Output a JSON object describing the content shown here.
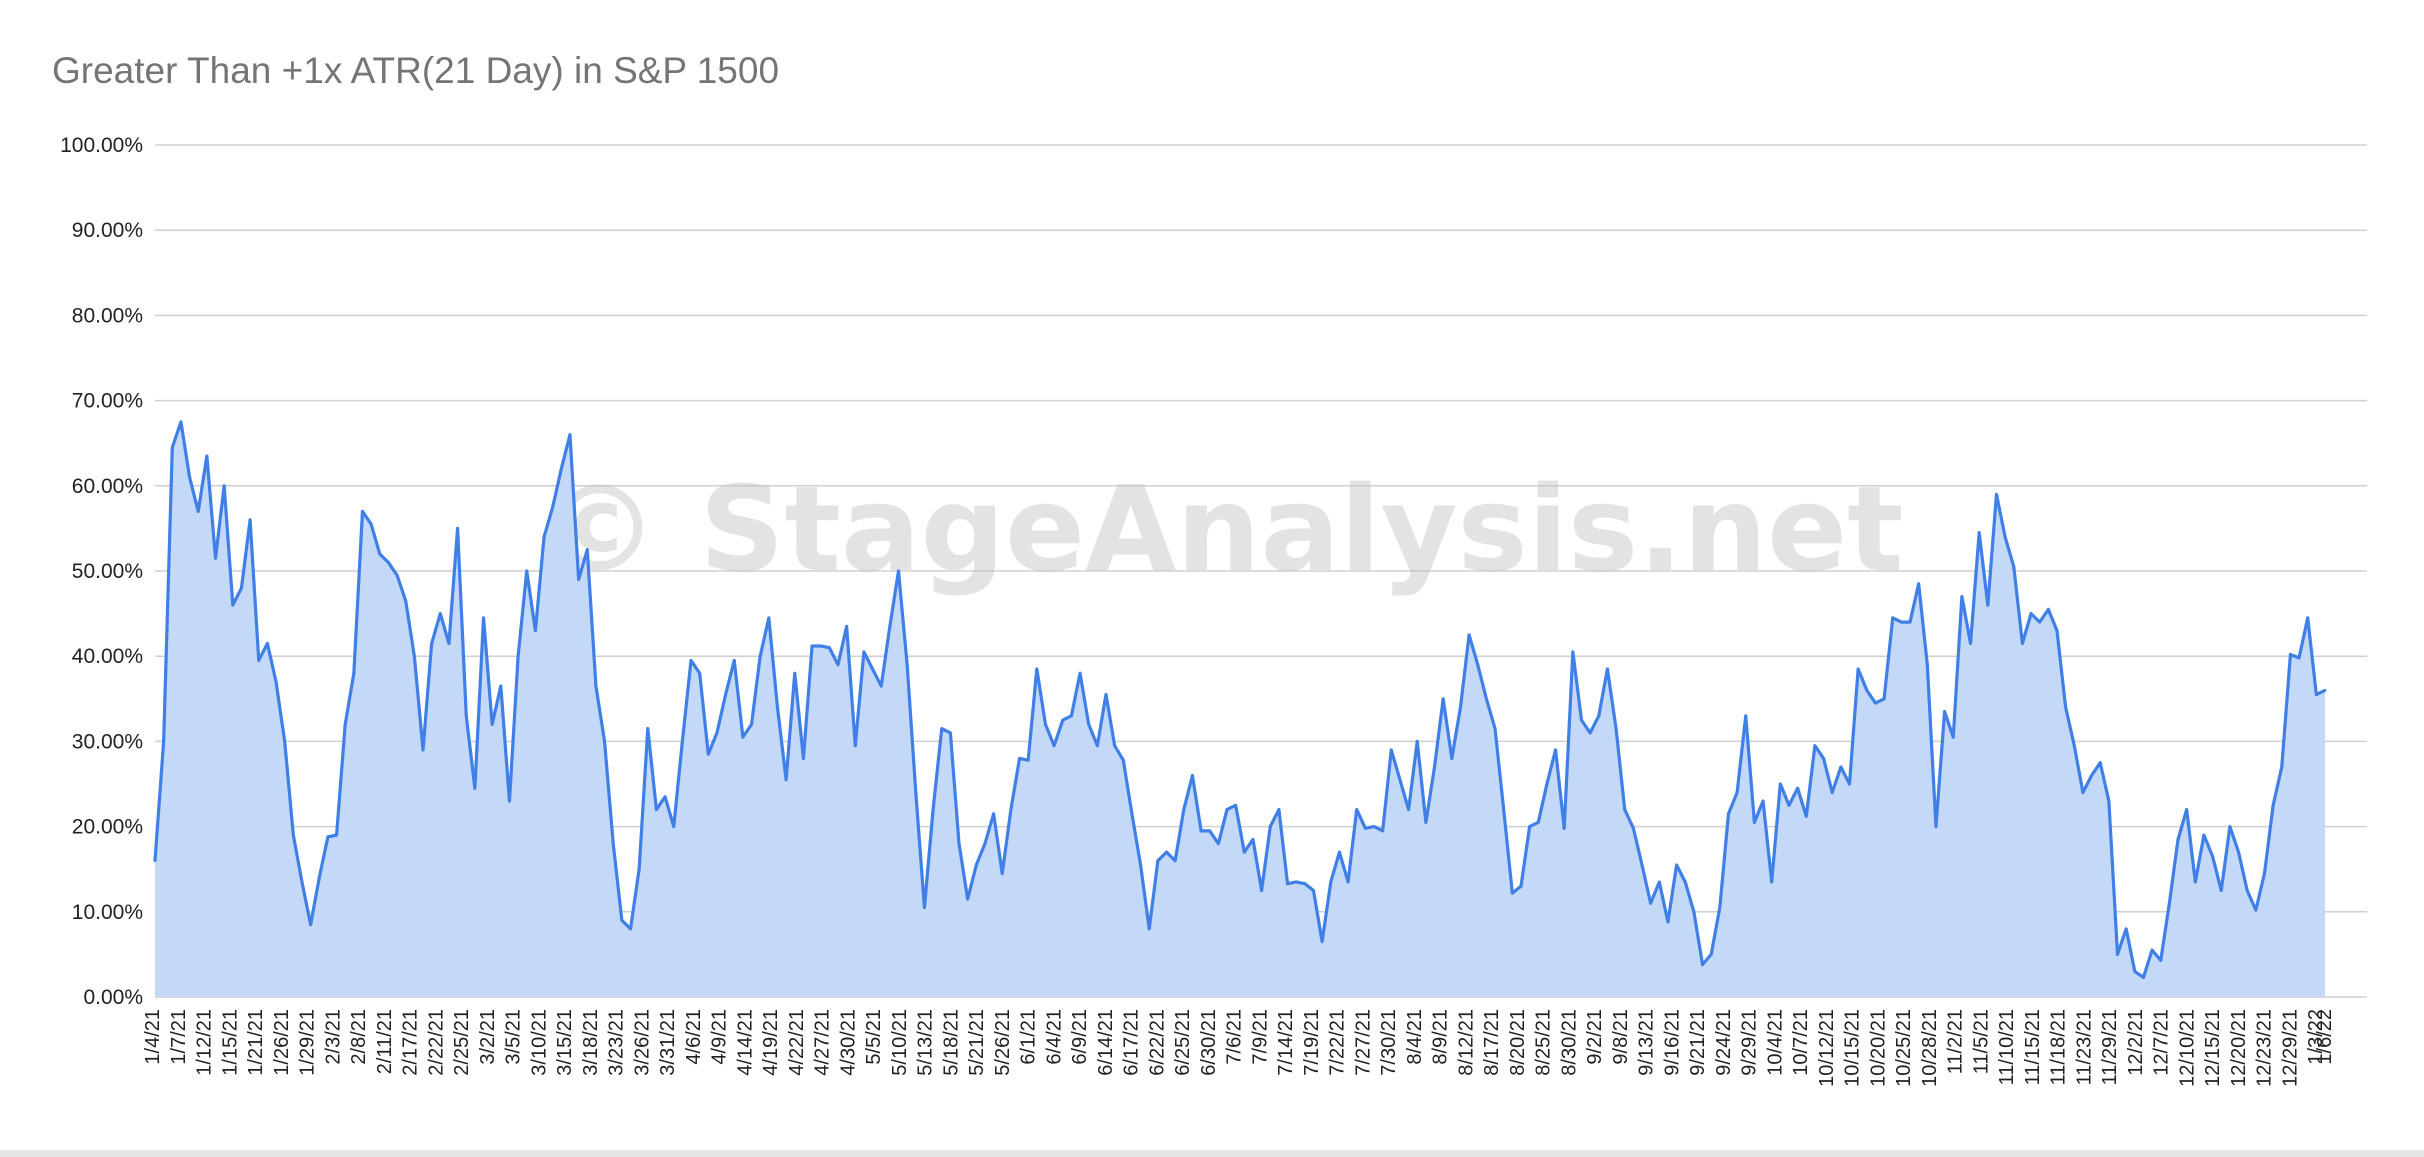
{
  "chart_data": {
    "type": "area",
    "title": "Greater Than +1x ATR(21 Day) in S&P 1500",
    "watermark": "© StageAnalysis.net",
    "xlabel": "",
    "ylabel": "",
    "ylim": [
      0,
      100
    ],
    "y_ticks": [
      "0.00%",
      "10.00%",
      "20.00%",
      "30.00%",
      "40.00%",
      "50.00%",
      "60.00%",
      "70.00%",
      "80.00%",
      "90.00%",
      "100.00%"
    ],
    "x_ticks": [
      "1/4/21",
      "1/7/21",
      "1/12/21",
      "1/15/21",
      "1/21/21",
      "1/26/21",
      "1/29/21",
      "2/3/21",
      "2/8/21",
      "2/11/21",
      "2/17/21",
      "2/22/21",
      "2/25/21",
      "3/2/21",
      "3/5/21",
      "3/10/21",
      "3/15/21",
      "3/18/21",
      "3/23/21",
      "3/26/21",
      "3/31/21",
      "4/6/21",
      "4/9/21",
      "4/14/21",
      "4/19/21",
      "4/22/21",
      "4/27/21",
      "4/30/21",
      "5/5/21",
      "5/10/21",
      "5/13/21",
      "5/18/21",
      "5/21/21",
      "5/26/21",
      "6/1/21",
      "6/4/21",
      "6/9/21",
      "6/14/21",
      "6/17/21",
      "6/22/21",
      "6/25/21",
      "6/30/21",
      "7/6/21",
      "7/9/21",
      "7/14/21",
      "7/19/21",
      "7/22/21",
      "7/27/21",
      "7/30/21",
      "8/4/21",
      "8/9/21",
      "8/12/21",
      "8/17/21",
      "8/20/21",
      "8/25/21",
      "8/30/21",
      "9/2/21",
      "9/8/21",
      "9/13/21",
      "9/16/21",
      "9/21/21",
      "9/24/21",
      "9/29/21",
      "10/4/21",
      "10/7/21",
      "10/12/21",
      "10/15/21",
      "10/20/21",
      "10/25/21",
      "10/28/21",
      "11/2/21",
      "11/5/21",
      "11/10/21",
      "11/15/21",
      "11/18/21",
      "11/23/21",
      "11/29/21",
      "12/2/21",
      "12/7/21",
      "12/10/21",
      "12/15/21",
      "12/20/21",
      "12/23/21",
      "12/29/21",
      "1/3/22",
      "1/6/22"
    ],
    "series": [
      {
        "color": "#3f7fe6",
        "fill": "#c4d8f8",
        "values": [
          16,
          30,
          64.5,
          67.5,
          61,
          57,
          63.5,
          51.5,
          60,
          46,
          48,
          56,
          39.5,
          41.5,
          37,
          30,
          19,
          13.5,
          8.5,
          14,
          18.8,
          19,
          32,
          38,
          57,
          55.5,
          52,
          51,
          49.5,
          46.5,
          40,
          29,
          41.5,
          45,
          41.5,
          55,
          33,
          24.5,
          44.5,
          32,
          36.5,
          23,
          40,
          50,
          43,
          54,
          57.5,
          62,
          66,
          49,
          52.5,
          36.5,
          30,
          18,
          9,
          8,
          15,
          31.5,
          22,
          23.5,
          20,
          30,
          39.5,
          38,
          28.5,
          31,
          35.5,
          39.5,
          30.5,
          32,
          40,
          44.5,
          34,
          25.5,
          38,
          28,
          41.2,
          41.2,
          41,
          39,
          43.5,
          29.5,
          40.5,
          38.5,
          36.5,
          43.5,
          50,
          39,
          24,
          10.5,
          22,
          31.5,
          31,
          18,
          11.5,
          15.5,
          18,
          21.5,
          14.5,
          22,
          28,
          27.8,
          38.5,
          32,
          29.5,
          32.5,
          33,
          38,
          32,
          29.5,
          35.5,
          29.5,
          27.8,
          21.5,
          15.5,
          8,
          16,
          17,
          16,
          22,
          26,
          19.5,
          19.5,
          18,
          22,
          22.5,
          17,
          18.5,
          12.5,
          20,
          22,
          13.3,
          13.5,
          13.3,
          12.5,
          6.5,
          13.5,
          17,
          13.5,
          22,
          19.8,
          20,
          19.5,
          29,
          25.5,
          22,
          30,
          20.5,
          27,
          35,
          28,
          34,
          42.5,
          39,
          35,
          31.5,
          22,
          12.2,
          13,
          20,
          20.5,
          25,
          29,
          19.8,
          40.5,
          32.5,
          31,
          33,
          38.5,
          31.5,
          22,
          19.8,
          15.5,
          11,
          13.5,
          8.8,
          15.5,
          13.5,
          10,
          3.8,
          5,
          10.5,
          21.5,
          24,
          33,
          20.5,
          23,
          13.5,
          25,
          22.5,
          24.5,
          21.2,
          29.5,
          28,
          24,
          27,
          25,
          38.5,
          36,
          34.5,
          35,
          44.5,
          44,
          44,
          48.5,
          39,
          20,
          33.5,
          30.5,
          47,
          41.5,
          54.5,
          46,
          59,
          54,
          50.5,
          41.5,
          45,
          44,
          45.5,
          43,
          34,
          29.5,
          24,
          26,
          27.5,
          23,
          5,
          8,
          3,
          2.3,
          5.5,
          4.3,
          11,
          18.5,
          22,
          13.5,
          19,
          16.5,
          12.5,
          20,
          17,
          12.5,
          10.2,
          14.5,
          22.5,
          27,
          40.2,
          39.8,
          44.5,
          35.5,
          36
        ]
      }
    ]
  }
}
